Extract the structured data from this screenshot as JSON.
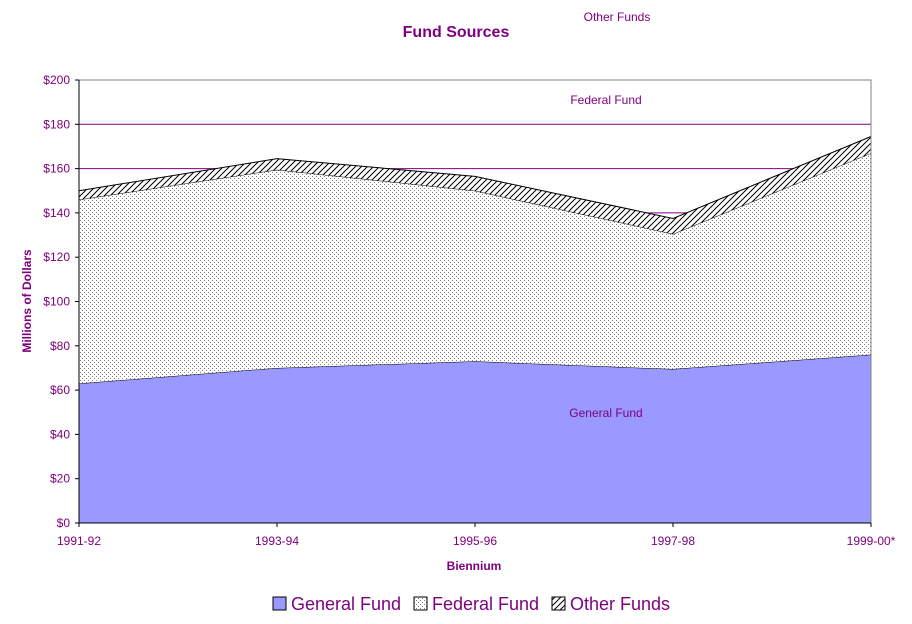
{
  "chart_data": {
    "type": "area",
    "stacked": true,
    "title": "Fund Sources",
    "xlabel": "Biennium",
    "ylabel": "Millions of Dollars",
    "categories": [
      "1991-92",
      "1993-94",
      "1995-96",
      "1997-98",
      "1999-00*"
    ],
    "ylim": [
      0,
      200
    ],
    "yticks": [
      "$0",
      "$20",
      "$40",
      "$60",
      "$80",
      "$100",
      "$120",
      "$140",
      "$160",
      "$180",
      "$200"
    ],
    "grid": "horizontal",
    "legend_position": "bottom",
    "series": [
      {
        "name": "General Fund",
        "values": [
          63,
          70,
          73,
          69.5,
          76
        ],
        "color": "#9999ff",
        "pattern": "solid"
      },
      {
        "name": "Federal Fund",
        "values": [
          83,
          89.5,
          77,
          61,
          91
        ],
        "color": "#ffffff",
        "pattern": "dots"
      },
      {
        "name": "Other Funds",
        "values": [
          4,
          5,
          6.5,
          7,
          7.5
        ],
        "color": "#ffffff",
        "pattern": "diagonal-hatch"
      }
    ],
    "annotations": {
      "other_funds": "Other Funds",
      "federal_fund": "Federal Fund",
      "general_fund": "General Fund"
    }
  }
}
